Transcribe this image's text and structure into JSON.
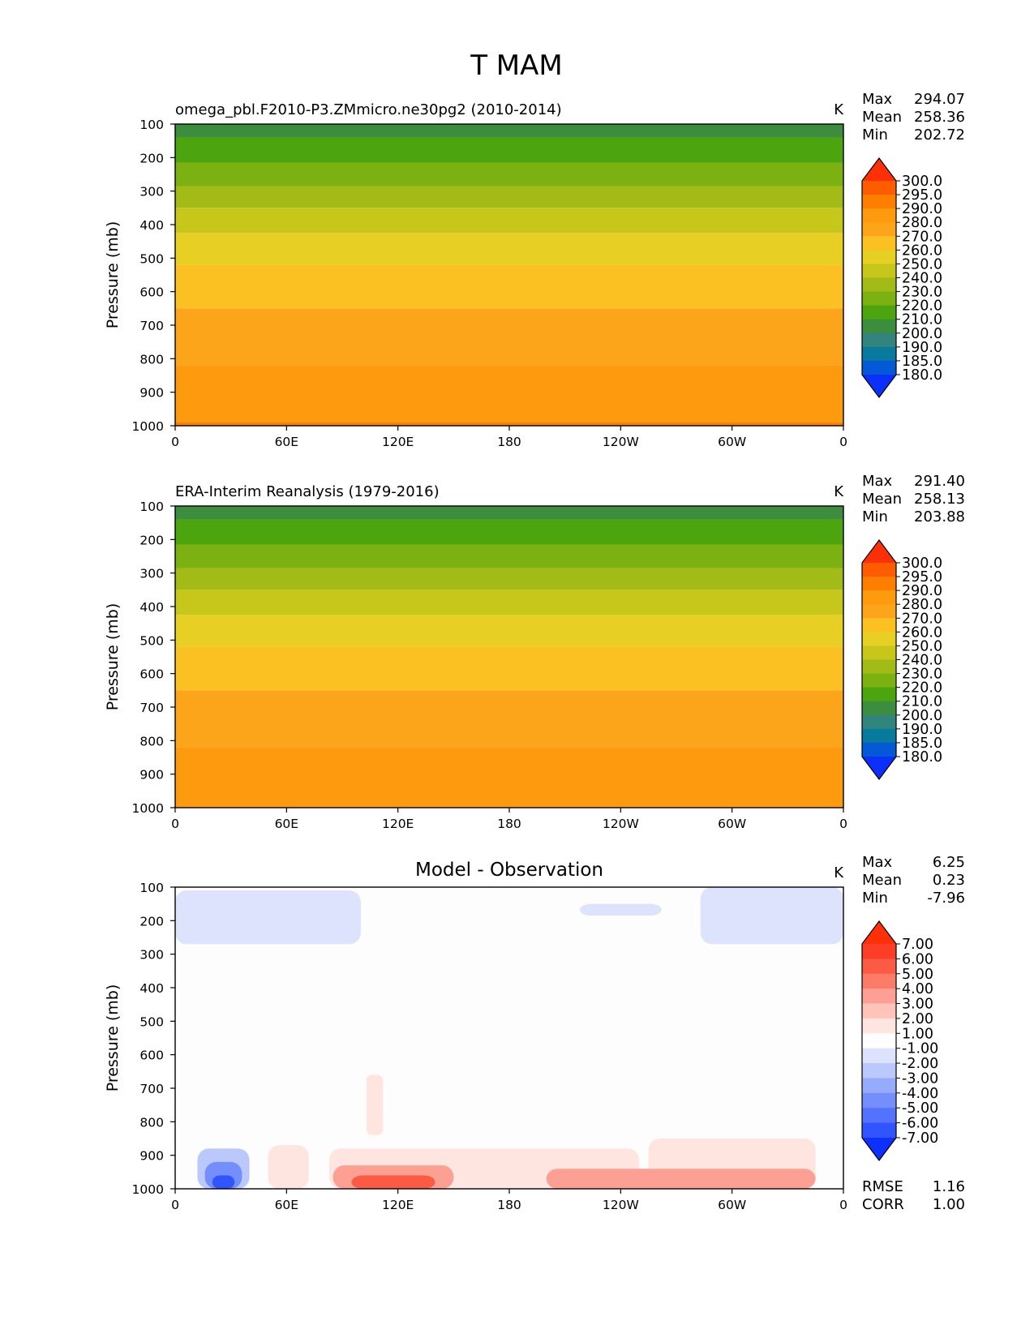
{
  "title": "T MAM",
  "chart_data": [
    {
      "type": "contour",
      "title": "omega_pbl.F2010-P3.ZMmicro.ne30pg2 (2010-2014)",
      "units": "K",
      "ylabel": "Pressure (mb)",
      "xticks": [
        "0",
        "60E",
        "120E",
        "180",
        "120W",
        "60W",
        "0"
      ],
      "yticks": [
        "100",
        "200",
        "300",
        "400",
        "500",
        "600",
        "700",
        "800",
        "900",
        "1000"
      ],
      "ylim": [
        1000,
        100
      ],
      "stats": {
        "max_label": "Max",
        "max": "294.07",
        "mean_label": "Mean",
        "mean": "258.36",
        "min_label": "Min",
        "min": "202.72"
      },
      "colorbar": {
        "levels": [
          "300.0",
          "295.0",
          "290.0",
          "280.0",
          "270.0",
          "260.0",
          "250.0",
          "240.0",
          "230.0",
          "220.0",
          "210.0",
          "200.0",
          "190.0",
          "185.0",
          "180.0"
        ],
        "colors": [
          "#ff2f08",
          "#fe5c00",
          "#fe7e00",
          "#fe9a0e",
          "#fca51a",
          "#fbc122",
          "#e8cf23",
          "#c6c61b",
          "#a2bb17",
          "#7bb212",
          "#4ca40f",
          "#3c8e3e",
          "#31857c",
          "#077a9e",
          "#0558d6",
          "#0a30fa"
        ]
      },
      "bands": [
        {
          "p_top": 100,
          "p_bottom": 140,
          "color": "#3c8e3e"
        },
        {
          "p_top": 140,
          "p_bottom": 215,
          "color": "#4ca40f"
        },
        {
          "p_top": 215,
          "p_bottom": 285,
          "color": "#7bb212"
        },
        {
          "p_top": 285,
          "p_bottom": 350,
          "color": "#a2bb17"
        },
        {
          "p_top": 350,
          "p_bottom": 425,
          "color": "#c6c61b"
        },
        {
          "p_top": 425,
          "p_bottom": 520,
          "color": "#e8cf23"
        },
        {
          "p_top": 520,
          "p_bottom": 650,
          "color": "#fbc122"
        },
        {
          "p_top": 650,
          "p_bottom": 820,
          "color": "#fca51a"
        },
        {
          "p_top": 820,
          "p_bottom": 990,
          "color": "#fe9a0e"
        },
        {
          "p_top": 990,
          "p_bottom": 1000,
          "color": "#fe7e00"
        }
      ]
    },
    {
      "type": "contour",
      "title": "ERA-Interim Reanalysis (1979-2016)",
      "units": "K",
      "ylabel": "Pressure (mb)",
      "xticks": [
        "0",
        "60E",
        "120E",
        "180",
        "120W",
        "60W",
        "0"
      ],
      "yticks": [
        "100",
        "200",
        "300",
        "400",
        "500",
        "600",
        "700",
        "800",
        "900",
        "1000"
      ],
      "ylim": [
        1000,
        100
      ],
      "stats": {
        "max_label": "Max",
        "max": "291.40",
        "mean_label": "Mean",
        "mean": "258.13",
        "min_label": "Min",
        "min": "203.88"
      },
      "colorbar": {
        "levels": [
          "300.0",
          "295.0",
          "290.0",
          "280.0",
          "270.0",
          "260.0",
          "250.0",
          "240.0",
          "230.0",
          "220.0",
          "210.0",
          "200.0",
          "190.0",
          "185.0",
          "180.0"
        ],
        "colors": [
          "#ff2f08",
          "#fe5c00",
          "#fe7e00",
          "#fe9a0e",
          "#fca51a",
          "#fbc122",
          "#e8cf23",
          "#c6c61b",
          "#a2bb17",
          "#7bb212",
          "#4ca40f",
          "#3c8e3e",
          "#31857c",
          "#077a9e",
          "#0558d6",
          "#0a30fa"
        ]
      },
      "bands": [
        {
          "p_top": 100,
          "p_bottom": 140,
          "color": "#3c8e3e"
        },
        {
          "p_top": 140,
          "p_bottom": 215,
          "color": "#4ca40f"
        },
        {
          "p_top": 215,
          "p_bottom": 285,
          "color": "#7bb212"
        },
        {
          "p_top": 285,
          "p_bottom": 350,
          "color": "#a2bb17"
        },
        {
          "p_top": 350,
          "p_bottom": 425,
          "color": "#c6c61b"
        },
        {
          "p_top": 425,
          "p_bottom": 520,
          "color": "#e8cf23"
        },
        {
          "p_top": 520,
          "p_bottom": 650,
          "color": "#fbc122"
        },
        {
          "p_top": 650,
          "p_bottom": 820,
          "color": "#fca51a"
        },
        {
          "p_top": 820,
          "p_bottom": 1000,
          "color": "#fe9a0e"
        }
      ]
    },
    {
      "type": "contour",
      "title": "Model - Observation",
      "units": "K",
      "ylabel": "Pressure (mb)",
      "xticks": [
        "0",
        "60E",
        "120E",
        "180",
        "120W",
        "60W",
        "0"
      ],
      "yticks": [
        "100",
        "200",
        "300",
        "400",
        "500",
        "600",
        "700",
        "800",
        "900",
        "1000"
      ],
      "ylim": [
        1000,
        100
      ],
      "stats": {
        "max_label": "Max",
        "max": "6.25",
        "mean_label": "Mean",
        "mean": "0.23",
        "min_label": "Min",
        "min": "-7.96"
      },
      "extra_stats": {
        "rmse_label": "RMSE",
        "rmse": "1.16",
        "corr_label": "CORR",
        "corr": "1.00"
      },
      "colorbar": {
        "levels": [
          "7.00",
          "6.00",
          "5.00",
          "4.00",
          "3.00",
          "2.00",
          "1.00",
          "-1.00",
          "-2.00",
          "-3.00",
          "-4.00",
          "-5.00",
          "-6.00",
          "-7.00"
        ],
        "colors": [
          "#ff2f08",
          "#fc3d28",
          "#fb5a45",
          "#fc7b68",
          "#fda093",
          "#fec4ba",
          "#fee5e0",
          "#fdfdfd",
          "#dde3fc",
          "#bac8fc",
          "#97abfc",
          "#748ffc",
          "#5372fd",
          "#3055fe",
          "#0c30fe"
        ]
      },
      "background": "#fdfdfd",
      "regions": [
        {
          "lon": [
            0,
            100
          ],
          "p": [
            110,
            270
          ],
          "color": "#dde3fc"
        },
        {
          "lon": [
            218,
            262
          ],
          "p": [
            150,
            185
          ],
          "color": "#dde3fc"
        },
        {
          "lon": [
            283,
            360
          ],
          "p": [
            100,
            270
          ],
          "color": "#dde3fc"
        },
        {
          "lon": [
            12,
            40
          ],
          "p": [
            880,
            1000
          ],
          "color": "#bac8fc"
        },
        {
          "lon": [
            16,
            36
          ],
          "p": [
            920,
            1000
          ],
          "color": "#748ffc"
        },
        {
          "lon": [
            20,
            32
          ],
          "p": [
            960,
            1000
          ],
          "color": "#3055fe"
        },
        {
          "lon": [
            103,
            112
          ],
          "p": [
            660,
            840
          ],
          "color": "#fee5e0"
        },
        {
          "lon": [
            50,
            72
          ],
          "p": [
            870,
            1000
          ],
          "color": "#fee5e0"
        },
        {
          "lon": [
            83,
            250
          ],
          "p": [
            880,
            1000
          ],
          "color": "#fee5e0"
        },
        {
          "lon": [
            255,
            345
          ],
          "p": [
            850,
            1000
          ],
          "color": "#fee5e0"
        },
        {
          "lon": [
            85,
            150
          ],
          "p": [
            930,
            1000
          ],
          "color": "#fda093"
        },
        {
          "lon": [
            95,
            140
          ],
          "p": [
            960,
            1000
          ],
          "color": "#fb5a45"
        },
        {
          "lon": [
            200,
            345
          ],
          "p": [
            940,
            1000
          ],
          "color": "#fda093"
        }
      ]
    }
  ]
}
